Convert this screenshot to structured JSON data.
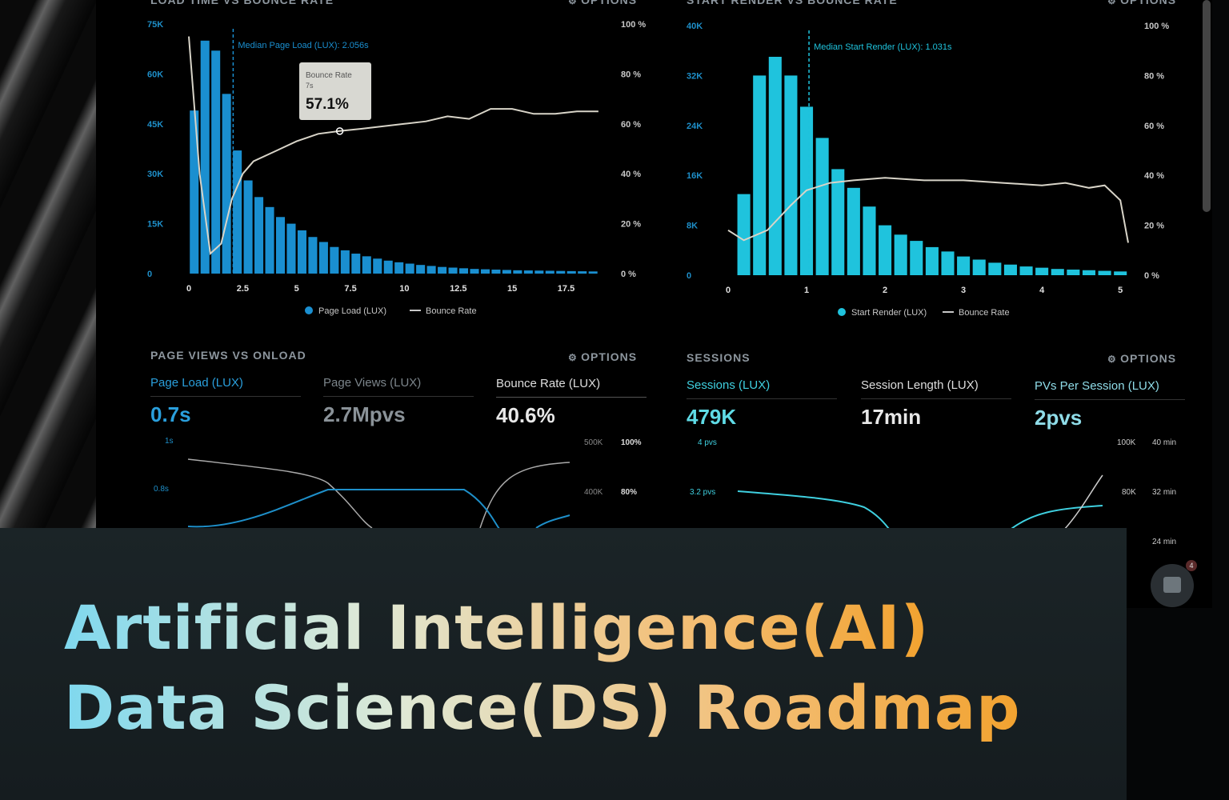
{
  "panels": {
    "p1": {
      "title": "LOAD TIME VS BOUNCE RATE",
      "options": "OPTIONS",
      "median_label": "Median Page Load (LUX): 2.056s",
      "tooltip": {
        "title": "Bounce Rate",
        "sub": "7s",
        "value": "57.1%"
      },
      "legend": {
        "series1": "Page Load (LUX)",
        "series2": "Bounce Rate"
      }
    },
    "p2": {
      "title": "START RENDER VS BOUNCE RATE",
      "options": "OPTIONS",
      "median_label": "Median Start Render (LUX): 1.031s",
      "legend": {
        "series1": "Start Render (LUX)",
        "series2": "Bounce Rate"
      }
    },
    "p3": {
      "title": "PAGE VIEWS VS ONLOAD",
      "options": "OPTIONS",
      "metrics": [
        {
          "label": "Page Load (LUX)",
          "value": "0.7s"
        },
        {
          "label": "Page Views (LUX)",
          "value": "2.7Mpvs"
        },
        {
          "label": "Bounce Rate (LUX)",
          "value": "40.6%"
        }
      ]
    },
    "p4": {
      "title": "SESSIONS",
      "options": "OPTIONS",
      "metrics": [
        {
          "label": "Sessions (LUX)",
          "value": "479K"
        },
        {
          "label": "Session Length (LUX)",
          "value": "17min"
        },
        {
          "label": "PVs Per Session (LUX)",
          "value": "2pvs"
        }
      ]
    }
  },
  "chat_badge": "4",
  "banner": {
    "line1": "Artificial Intelligence(AI)",
    "line2": "Data Science(DS) Roadmap"
  },
  "colors": {
    "bar1": "#1a8fd0",
    "bar2": "#1fc3dd",
    "line": "#d8d4c8",
    "accent_blue": "#2aa3e0",
    "accent_teal": "#3fd0e0"
  },
  "chart_data": [
    {
      "type": "bar",
      "title": "LOAD TIME VS BOUNCE RATE",
      "x_ticks": [
        "0",
        "2.5",
        "5",
        "7.5",
        "10",
        "12.5",
        "15",
        "17.5"
      ],
      "y_ticks_left": [
        "0",
        "15K",
        "30K",
        "45K",
        "60K",
        "75K"
      ],
      "y_ticks_right": [
        "0 %",
        "20 %",
        "40 %",
        "60 %",
        "80 %",
        "100 %"
      ],
      "series": [
        {
          "name": "Page Load (LUX)",
          "x": [
            0.25,
            0.75,
            1.25,
            1.75,
            2.25,
            2.75,
            3.25,
            3.75,
            4.25,
            4.75,
            5.25,
            5.75,
            6.25,
            6.75,
            7.25,
            7.75,
            8.25,
            8.75,
            9.25,
            9.75,
            10.25,
            10.75,
            11.25,
            11.75,
            12.25,
            12.75,
            13.25,
            13.75,
            14.25,
            14.75,
            15.25,
            15.75,
            16.25,
            16.75,
            17.25,
            17.75,
            18.25,
            18.75
          ],
          "values": [
            49000,
            70000,
            67000,
            54000,
            37000,
            28000,
            23000,
            20000,
            17000,
            15000,
            13000,
            11000,
            9500,
            8000,
            7000,
            6000,
            5200,
            4500,
            3900,
            3400,
            3000,
            2600,
            2300,
            2000,
            1800,
            1600,
            1400,
            1300,
            1200,
            1100,
            1000,
            950,
            900,
            850,
            800,
            750,
            700,
            650
          ]
        },
        {
          "name": "Bounce Rate",
          "x": [
            0,
            0.5,
            1,
            1.5,
            2,
            2.5,
            3,
            4,
            5,
            6,
            7,
            8,
            9,
            10,
            11,
            12,
            13,
            14,
            15,
            16,
            17,
            18,
            19
          ],
          "values": [
            95,
            40,
            8,
            12,
            30,
            40,
            45,
            49,
            53,
            56,
            57.1,
            58,
            59,
            60,
            61,
            63,
            62,
            66,
            66,
            64,
            64,
            65,
            65
          ]
        }
      ],
      "annotation": "Median Page Load (LUX): 2.056s"
    },
    {
      "type": "bar",
      "title": "START RENDER VS BOUNCE RATE",
      "x_ticks": [
        "0",
        "1",
        "2",
        "3",
        "4",
        "5"
      ],
      "y_ticks_left": [
        "0",
        "8K",
        "16K",
        "24K",
        "32K",
        "40K"
      ],
      "y_ticks_right": [
        "0 %",
        "20 %",
        "40 %",
        "60 %",
        "80 %",
        "100 %"
      ],
      "series": [
        {
          "name": "Start Render (LUX)",
          "x": [
            0.2,
            0.4,
            0.6,
            0.8,
            1.0,
            1.2,
            1.4,
            1.6,
            1.8,
            2.0,
            2.2,
            2.4,
            2.6,
            2.8,
            3.0,
            3.2,
            3.4,
            3.6,
            3.8,
            4.0,
            4.2,
            4.4,
            4.6,
            4.8,
            5.0
          ],
          "values": [
            13000,
            32000,
            35000,
            32000,
            27000,
            22000,
            17000,
            14000,
            11000,
            8000,
            6500,
            5500,
            4500,
            3800,
            3000,
            2500,
            2000,
            1700,
            1400,
            1200,
            1000,
            900,
            800,
            700,
            600
          ]
        },
        {
          "name": "Bounce Rate",
          "x": [
            0,
            0.2,
            0.5,
            0.8,
            1.0,
            1.3,
            1.6,
            2.0,
            2.5,
            3.0,
            3.5,
            4.0,
            4.3,
            4.6,
            4.8,
            5.0,
            5.1
          ],
          "values": [
            18,
            14,
            18,
            28,
            34,
            37,
            38,
            39,
            38,
            38,
            37,
            36,
            37,
            35,
            36,
            30,
            13
          ]
        }
      ],
      "annotation": "Median Start Render (LUX): 1.031s"
    },
    {
      "type": "line",
      "title": "PAGE VIEWS VS ONLOAD",
      "y_ticks_left": [
        "0.8s",
        "1s"
      ],
      "y_ticks_right_a": [
        "400K",
        "500K"
      ],
      "y_ticks_right_b": [
        "80%",
        "100%"
      ]
    },
    {
      "type": "line",
      "title": "SESSIONS",
      "y_ticks_left": [
        "3.2 pvs",
        "4 pvs"
      ],
      "y_ticks_right_a": [
        "80K",
        "100K"
      ],
      "y_ticks_right_b": [
        "24 min",
        "32 min",
        "40 min"
      ]
    }
  ]
}
